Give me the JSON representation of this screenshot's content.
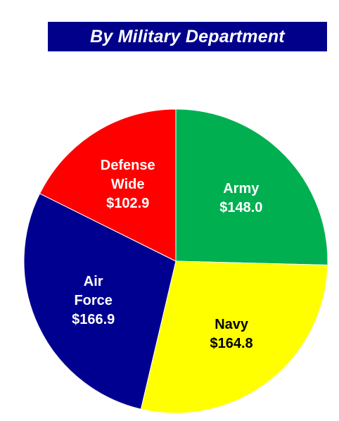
{
  "title": "By Military Department",
  "colors": {
    "banner": "#00008B",
    "army": "#00B050",
    "navy": "#FFFF00",
    "air_force": "#000090",
    "defense_wide": "#FF0000"
  },
  "chart_data": {
    "type": "pie",
    "title": "By Military Department",
    "series": [
      {
        "name": "",
        "slices": [
          {
            "key": "army",
            "label": [
              "Army"
            ],
            "value_text": "$148.0",
            "value": 148.0,
            "color": "#00B050",
            "text_color": "#ffffff"
          },
          {
            "key": "navy",
            "label": [
              "Navy"
            ],
            "value_text": "$164.8",
            "value": 164.8,
            "color": "#FFFF00",
            "text_color": "#000000"
          },
          {
            "key": "air-force",
            "label": [
              "Air",
              "Force"
            ],
            "value_text": "$166.9",
            "value": 166.9,
            "color": "#000090",
            "text_color": "#ffffff"
          },
          {
            "key": "defense-wide",
            "label": [
              "Defense",
              "Wide"
            ],
            "value_text": "$102.9",
            "value": 102.9,
            "color": "#FF0000",
            "text_color": "#ffffff"
          }
        ]
      }
    ]
  }
}
